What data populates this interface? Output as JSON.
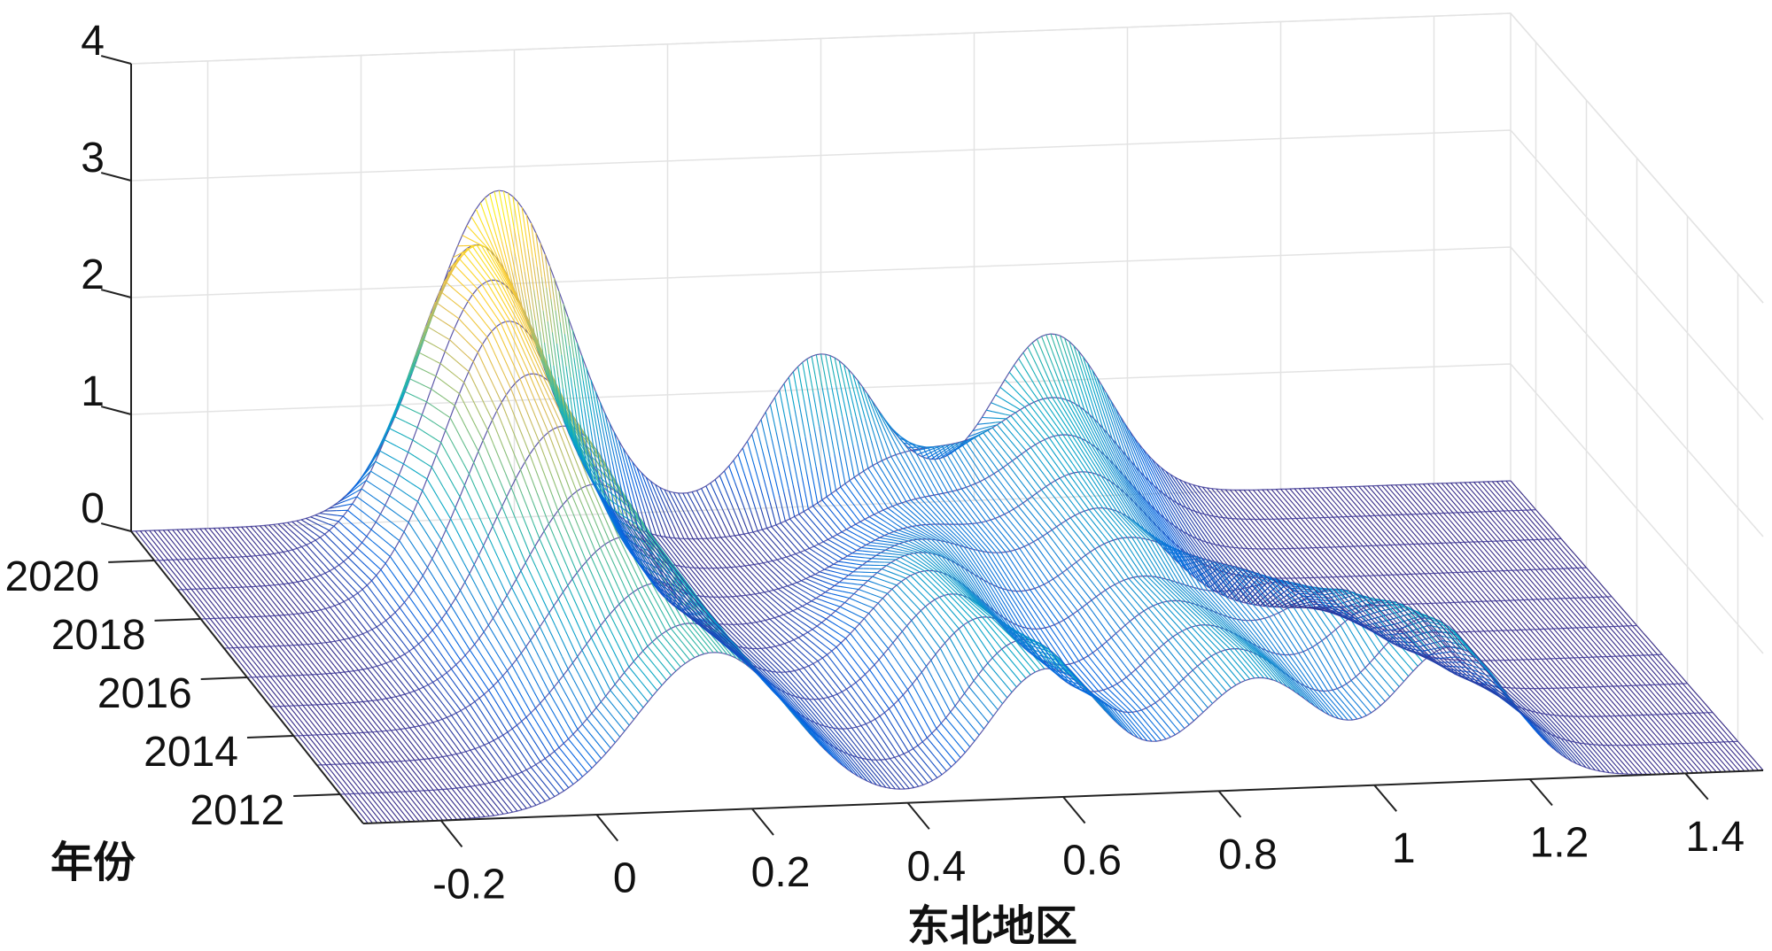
{
  "chart_data": {
    "type": "surface",
    "xlabel": "东北地区",
    "ylabel": "年份",
    "zlabel": "",
    "title": "",
    "xlim": [
      -0.3,
      1.5
    ],
    "ylim": [
      2011,
      2021
    ],
    "zlim": [
      0,
      4
    ],
    "x_ticks": [
      "-0.2",
      "0",
      "0.2",
      "0.4",
      "0.6",
      "0.8",
      "1",
      "1.2",
      "1.4"
    ],
    "y_ticks": [
      "2012",
      "2014",
      "2016",
      "2018",
      "2020"
    ],
    "z_ticks": [
      "0",
      "1",
      "2",
      "3",
      "4"
    ],
    "grid": true,
    "colormap": "parula",
    "series": [
      {
        "year": 2012,
        "peaks": [
          {
            "x": 0.15,
            "h": 1.35,
            "w": 0.1
          },
          {
            "x": 0.58,
            "h": 1.1,
            "w": 0.075
          },
          {
            "x": 0.85,
            "h": 0.95,
            "w": 0.08
          },
          {
            "x": 1.1,
            "h": 1.15,
            "w": 0.075
          }
        ]
      },
      {
        "year": 2013,
        "peaks": [
          {
            "x": 0.14,
            "h": 1.45,
            "w": 0.1
          },
          {
            "x": 0.56,
            "h": 1.05,
            "w": 0.075
          },
          {
            "x": 0.84,
            "h": 0.9,
            "w": 0.08
          },
          {
            "x": 1.08,
            "h": 1.05,
            "w": 0.08
          }
        ]
      },
      {
        "year": 2014,
        "peaks": [
          {
            "x": 0.13,
            "h": 1.6,
            "w": 0.1
          },
          {
            "x": 0.55,
            "h": 1.0,
            "w": 0.075
          },
          {
            "x": 0.83,
            "h": 0.85,
            "w": 0.08
          },
          {
            "x": 1.05,
            "h": 0.9,
            "w": 0.08
          }
        ]
      },
      {
        "year": 2015,
        "peaks": [
          {
            "x": 0.12,
            "h": 1.8,
            "w": 0.095
          },
          {
            "x": 0.55,
            "h": 0.95,
            "w": 0.08
          },
          {
            "x": 0.82,
            "h": 0.8,
            "w": 0.08
          },
          {
            "x": 1.02,
            "h": 0.7,
            "w": 0.08
          }
        ]
      },
      {
        "year": 2016,
        "peaks": [
          {
            "x": 0.11,
            "h": 2.05,
            "w": 0.09
          },
          {
            "x": 0.57,
            "h": 0.85,
            "w": 0.085
          },
          {
            "x": 0.83,
            "h": 0.85,
            "w": 0.08
          },
          {
            "x": 1.0,
            "h": 0.5,
            "w": 0.08
          }
        ]
      },
      {
        "year": 2017,
        "peaks": [
          {
            "x": 0.1,
            "h": 2.25,
            "w": 0.085
          },
          {
            "x": 0.6,
            "h": 0.7,
            "w": 0.09
          },
          {
            "x": 0.84,
            "h": 0.9,
            "w": 0.08
          }
        ]
      },
      {
        "year": 2018,
        "peaks": [
          {
            "x": 0.1,
            "h": 2.45,
            "w": 0.085
          },
          {
            "x": 0.63,
            "h": 0.55,
            "w": 0.09
          },
          {
            "x": 0.85,
            "h": 0.95,
            "w": 0.08
          }
        ]
      },
      {
        "year": 2019,
        "peaks": [
          {
            "x": 0.11,
            "h": 2.55,
            "w": 0.085
          },
          {
            "x": 0.66,
            "h": 0.5,
            "w": 0.09
          },
          {
            "x": 0.86,
            "h": 1.0,
            "w": 0.08
          }
        ]
      },
      {
        "year": 2020,
        "peaks": [
          {
            "x": 0.12,
            "h": 2.6,
            "w": 0.085
          },
          {
            "x": 0.68,
            "h": 0.65,
            "w": 0.09
          },
          {
            "x": 0.88,
            "h": 1.05,
            "w": 0.08
          }
        ]
      },
      {
        "year": 2021,
        "peaks": [
          {
            "x": 0.18,
            "h": 2.8,
            "w": 0.09
          },
          {
            "x": 0.6,
            "h": 1.3,
            "w": 0.075
          },
          {
            "x": 0.9,
            "h": 1.4,
            "w": 0.075
          }
        ]
      }
    ]
  }
}
